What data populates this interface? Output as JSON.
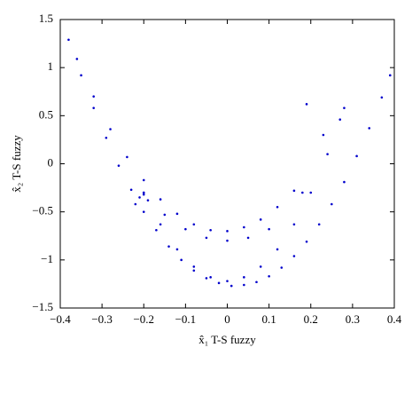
{
  "chart_data": {
    "type": "scatter",
    "xlabel": "x̂₁ T-S fuzzy",
    "ylabel": "x̂₂ T-S fuzzy",
    "color": "#0000cc",
    "xlim": [
      -0.4,
      0.4
    ],
    "ylim": [
      -1.5,
      1.5
    ],
    "xticks": [
      {
        "value": -0.4,
        "label": "−0.4"
      },
      {
        "value": -0.3,
        "label": "−0.3"
      },
      {
        "value": -0.2,
        "label": "−0.2"
      },
      {
        "value": -0.1,
        "label": "−0.1"
      },
      0,
      0.1,
      0.2,
      0.3,
      0.4
    ],
    "yticks": [
      {
        "value": -1.5,
        "label": "−1.5"
      },
      {
        "value": -1,
        "label": "−1"
      },
      {
        "value": -0.5,
        "label": "−0.5"
      },
      0,
      0.5,
      1,
      1.5
    ],
    "x": [
      -0.38,
      -0.35,
      -0.32,
      -0.29,
      -0.26,
      -0.23,
      -0.2,
      -0.17,
      -0.14,
      -0.11,
      -0.08,
      -0.05,
      -0.02,
      0.01,
      0.04,
      0.07,
      0.1,
      0.13,
      0.16,
      0.19,
      0.22,
      0.25,
      0.28,
      0.31,
      0.34,
      0.37,
      0.39,
      -0.2,
      -0.16,
      -0.12,
      -0.08,
      -0.04,
      0,
      0.04,
      0.08,
      0.12,
      0.16,
      0.2,
      0.24,
      0.27,
      0.28,
      -0.36,
      -0.32,
      -0.28,
      -0.24,
      -0.2,
      -0.16,
      -0.12,
      -0.08,
      -0.04,
      0,
      0.04,
      0.08,
      0.12,
      0.16,
      -0.2,
      -0.15,
      -0.1,
      -0.05,
      0,
      0.05,
      0.1,
      0.19,
      0.18,
      0.23,
      -0.21,
      -0.22,
      -0.19,
      -0.2
    ],
    "y": [
      1.29,
      0.92,
      0.58,
      0.27,
      -0.02,
      -0.27,
      -0.5,
      -0.69,
      -0.86,
      -1.0,
      -1.11,
      -1.19,
      -1.24,
      -1.27,
      -1.26,
      -1.23,
      -1.17,
      -1.08,
      -0.96,
      -0.81,
      -0.63,
      -0.42,
      -0.19,
      0.08,
      0.37,
      0.69,
      0.92,
      -0.3,
      -0.63,
      -0.89,
      -1.07,
      -1.18,
      -1.22,
      -1.18,
      -1.07,
      -0.89,
      -0.63,
      -0.3,
      0.1,
      0.46,
      0.58,
      1.09,
      0.7,
      0.36,
      0.07,
      -0.17,
      -0.37,
      -0.52,
      -0.63,
      -0.69,
      -0.7,
      -0.66,
      -0.58,
      -0.45,
      -0.28,
      -0.32,
      -0.53,
      -0.68,
      -0.77,
      -0.8,
      -0.77,
      -0.68,
      0.62,
      -0.3,
      0.3,
      -0.35,
      -0.42,
      -0.38,
      -0.3
    ]
  }
}
